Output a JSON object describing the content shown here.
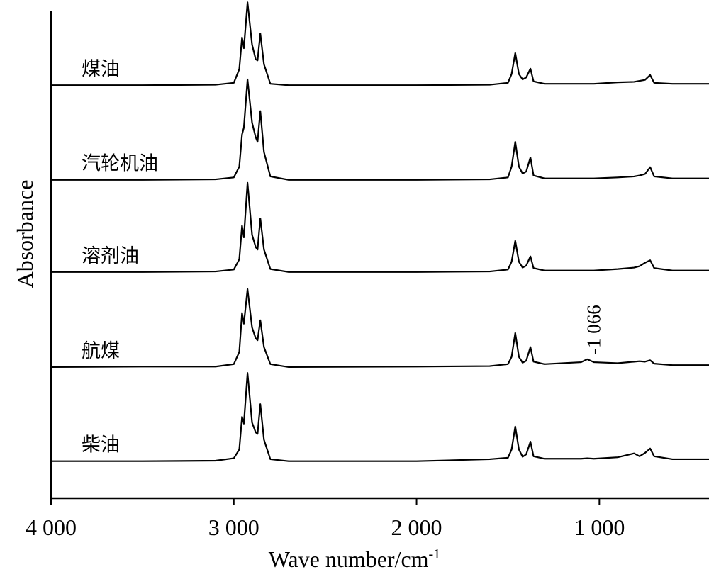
{
  "chart_data": {
    "type": "line",
    "xlabel": "Wave number/cm",
    "xlabel_sup": "-1",
    "ylabel": "Absorbance",
    "xlim": [
      4000,
      400
    ],
    "ylim": [
      0,
      100
    ],
    "xticks": [
      {
        "value": 4000,
        "label": "4 000"
      },
      {
        "value": 3000,
        "label": "3 000"
      },
      {
        "value": 2000,
        "label": "2 000"
      },
      {
        "value": 1000,
        "label": "1 000"
      }
    ],
    "annotations": [
      {
        "text": "-1 066",
        "x": 1066
      }
    ],
    "x": [
      4000,
      3500,
      3100,
      3000,
      2970,
      2955,
      2945,
      2925,
      2900,
      2880,
      2870,
      2855,
      2835,
      2800,
      2700,
      2000,
      1600,
      1500,
      1480,
      1460,
      1440,
      1420,
      1400,
      1377,
      1360,
      1300,
      1100,
      1066,
      1030,
      900,
      810,
      780,
      750,
      722,
      700,
      600,
      500,
      400
    ],
    "series": [
      {
        "name": "煤油",
        "color": "#000000",
        "values": [
          84.7,
          84.7,
          84.8,
          85.2,
          88,
          94.5,
          92.3,
          101.7,
          93,
          90,
          89.8,
          95.3,
          89,
          85,
          84.7,
          84.7,
          84.8,
          85.2,
          87,
          91.3,
          87,
          85.9,
          86.3,
          88.1,
          85.5,
          85,
          85,
          85,
          85,
          85.3,
          85.4,
          85.6,
          85.8,
          86.8,
          85.2,
          85,
          85,
          85
        ]
      },
      {
        "name": "汽轮机油",
        "color": "#000000",
        "values": [
          65.3,
          65.3,
          65.4,
          65.8,
          68,
          74.6,
          76,
          85.9,
          77,
          74,
          73.1,
          79.4,
          71,
          66,
          65.3,
          65.3,
          65.4,
          65.8,
          68,
          73.1,
          68,
          66.6,
          67,
          69.9,
          66.2,
          65.6,
          65.6,
          65.6,
          65.6,
          65.8,
          66,
          66.2,
          66.5,
          67.9,
          66,
          65.6,
          65.6,
          65.6
        ]
      },
      {
        "name": "溶剂油",
        "color": "#000000",
        "values": [
          46.4,
          46.4,
          46.5,
          46.9,
          49,
          55.9,
          53.5,
          64.7,
          54,
          51.5,
          51,
          57.4,
          51,
          47,
          46.4,
          46.4,
          46.5,
          46.9,
          48.5,
          52.8,
          48.5,
          47.3,
          47.7,
          49.6,
          47.2,
          46.7,
          46.7,
          46.7,
          46.7,
          47,
          47.3,
          47.6,
          48.3,
          48.8,
          47.2,
          46.7,
          46.7,
          46.7
        ]
      },
      {
        "name": "航煤",
        "color": "#000000",
        "values": [
          26.9,
          27,
          27,
          27.5,
          30,
          38,
          35.8,
          42.9,
          35,
          32.8,
          32.4,
          36.5,
          31,
          27.5,
          26.9,
          27,
          27.1,
          27.5,
          29,
          33.9,
          29,
          27.8,
          28.2,
          31,
          28,
          27.5,
          27.9,
          28.5,
          27.9,
          27.7,
          28,
          28.1,
          28,
          28.3,
          27.6,
          27.3,
          27.3,
          27.3
        ]
      },
      {
        "name": "柴油",
        "color": "#000000",
        "values": [
          7.6,
          7.6,
          7.7,
          8.2,
          10,
          16.7,
          15.3,
          25.7,
          15.5,
          13.5,
          13.2,
          19.3,
          12,
          8,
          7.6,
          7.6,
          8,
          8.3,
          10,
          14.7,
          10,
          8.5,
          9,
          11.6,
          8.6,
          8.1,
          8.1,
          8.2,
          8.1,
          8.4,
          9.2,
          8.6,
          9.3,
          10.2,
          8.6,
          8,
          8,
          8
        ]
      }
    ]
  }
}
